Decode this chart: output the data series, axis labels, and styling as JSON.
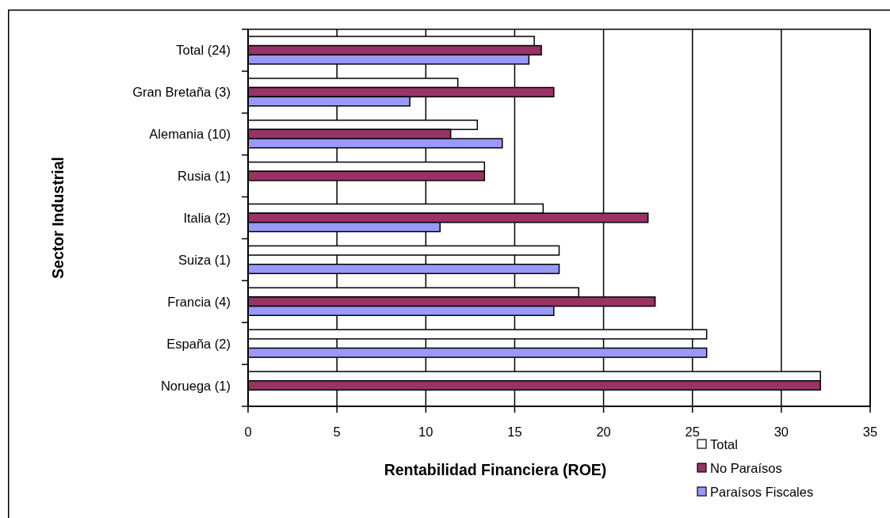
{
  "chart_data": {
    "type": "bar",
    "orientation": "horizontal",
    "categories": [
      "Total (24)",
      "Gran Bretaña (3)",
      "Alemania (10)",
      "Rusia (1)",
      "Italia (2)",
      "Suiza (1)",
      "Francia (4)",
      "España (2)",
      "Noruega (1)"
    ],
    "series": [
      {
        "name": "Total",
        "color": "#ffffff",
        "values": [
          16.1,
          11.8,
          12.9,
          13.3,
          16.6,
          17.5,
          18.6,
          25.8,
          32.2
        ]
      },
      {
        "name": "No Paraísos",
        "color": "#993366",
        "values": [
          16.5,
          17.2,
          11.4,
          13.3,
          22.5,
          null,
          22.9,
          null,
          32.2
        ]
      },
      {
        "name": "Paraísos Fiscales",
        "color": "#9999ff",
        "values": [
          15.8,
          9.1,
          14.3,
          null,
          10.8,
          17.5,
          17.2,
          25.8,
          null
        ]
      }
    ],
    "xlabel": "Rentabilidad Financiera (ROE)",
    "ylabel": "Sector Industrial",
    "xlim": [
      0,
      35
    ],
    "xticks": [
      0,
      5,
      10,
      15,
      20,
      25,
      30,
      35
    ],
    "grid": "x",
    "legend": "bottom right"
  }
}
